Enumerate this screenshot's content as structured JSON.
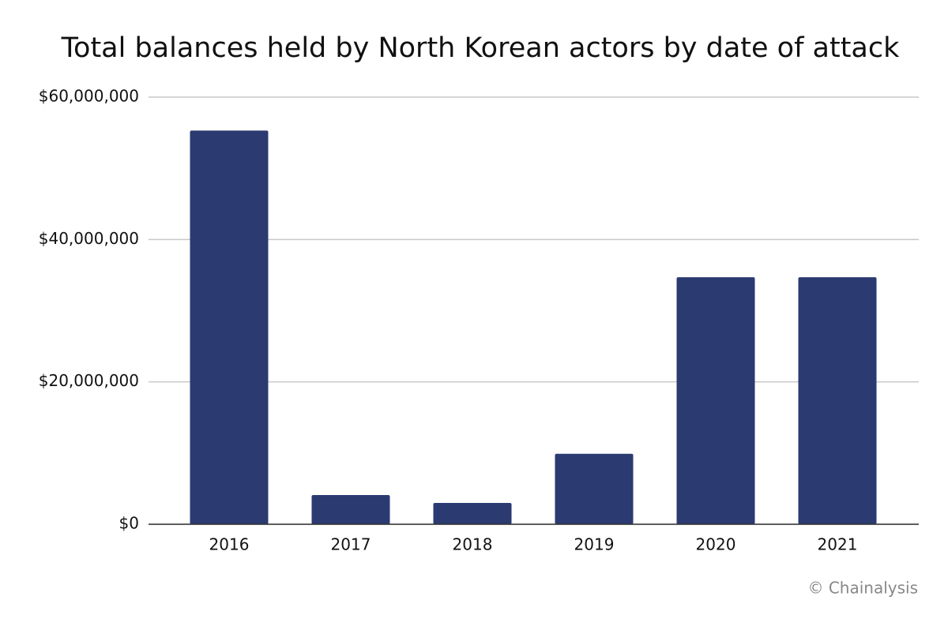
{
  "chart_data": {
    "type": "bar",
    "title": "Total balances held by North Korean actors by date of attack",
    "categories": [
      "2016",
      "2017",
      "2018",
      "2019",
      "2020",
      "2021"
    ],
    "values": [
      55300000,
      4100000,
      3000000,
      9900000,
      34700000,
      34700000
    ],
    "color": "#2b3a70",
    "ylim": [
      0,
      60000000
    ],
    "yticks": [
      {
        "value": 0,
        "label": "$0"
      },
      {
        "value": 20000000,
        "label": "$20,000,000"
      },
      {
        "value": 40000000,
        "label": "$40,000,000"
      },
      {
        "value": 60000000,
        "label": "$60,000,000"
      }
    ],
    "grid": true,
    "source": "© Chainalysis"
  }
}
